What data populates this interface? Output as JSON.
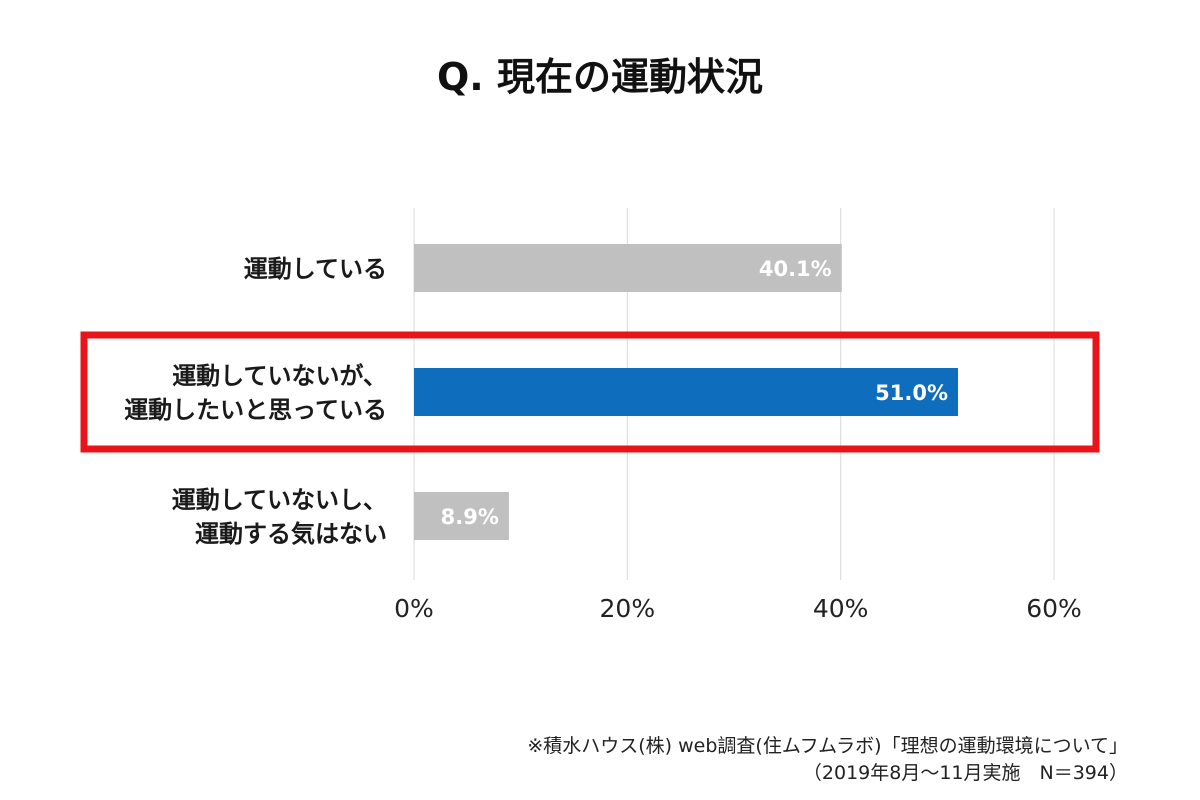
{
  "chart_data": {
    "type": "bar",
    "orientation": "horizontal",
    "title": "Q. 現在の運動状況",
    "categories": [
      [
        "運動している"
      ],
      [
        "運動していないが、",
        "運動したいと思っている"
      ],
      [
        "運動していないし、",
        "運動する気はない"
      ]
    ],
    "values": [
      40.1,
      51.0,
      8.9
    ],
    "value_labels": [
      "40.1%",
      "51.0%",
      "8.9%"
    ],
    "bar_colors": [
      "#c0c0c0",
      "#0e6dbd",
      "#c0c0c0"
    ],
    "highlight_index": 1,
    "highlight_color": "#e8141a",
    "xlim": [
      0,
      60
    ],
    "xticks": [
      0,
      20,
      40,
      60
    ],
    "xtick_labels": [
      "0%",
      "20%",
      "40%",
      "60%"
    ],
    "grid": true,
    "xlabel": "",
    "ylabel": ""
  },
  "footnote": {
    "line1": "※積水ハウス(株) web調査(住ムフムラボ)「理想の運動環境について」",
    "line2": "（2019年8月～11月実施　N＝394）"
  }
}
